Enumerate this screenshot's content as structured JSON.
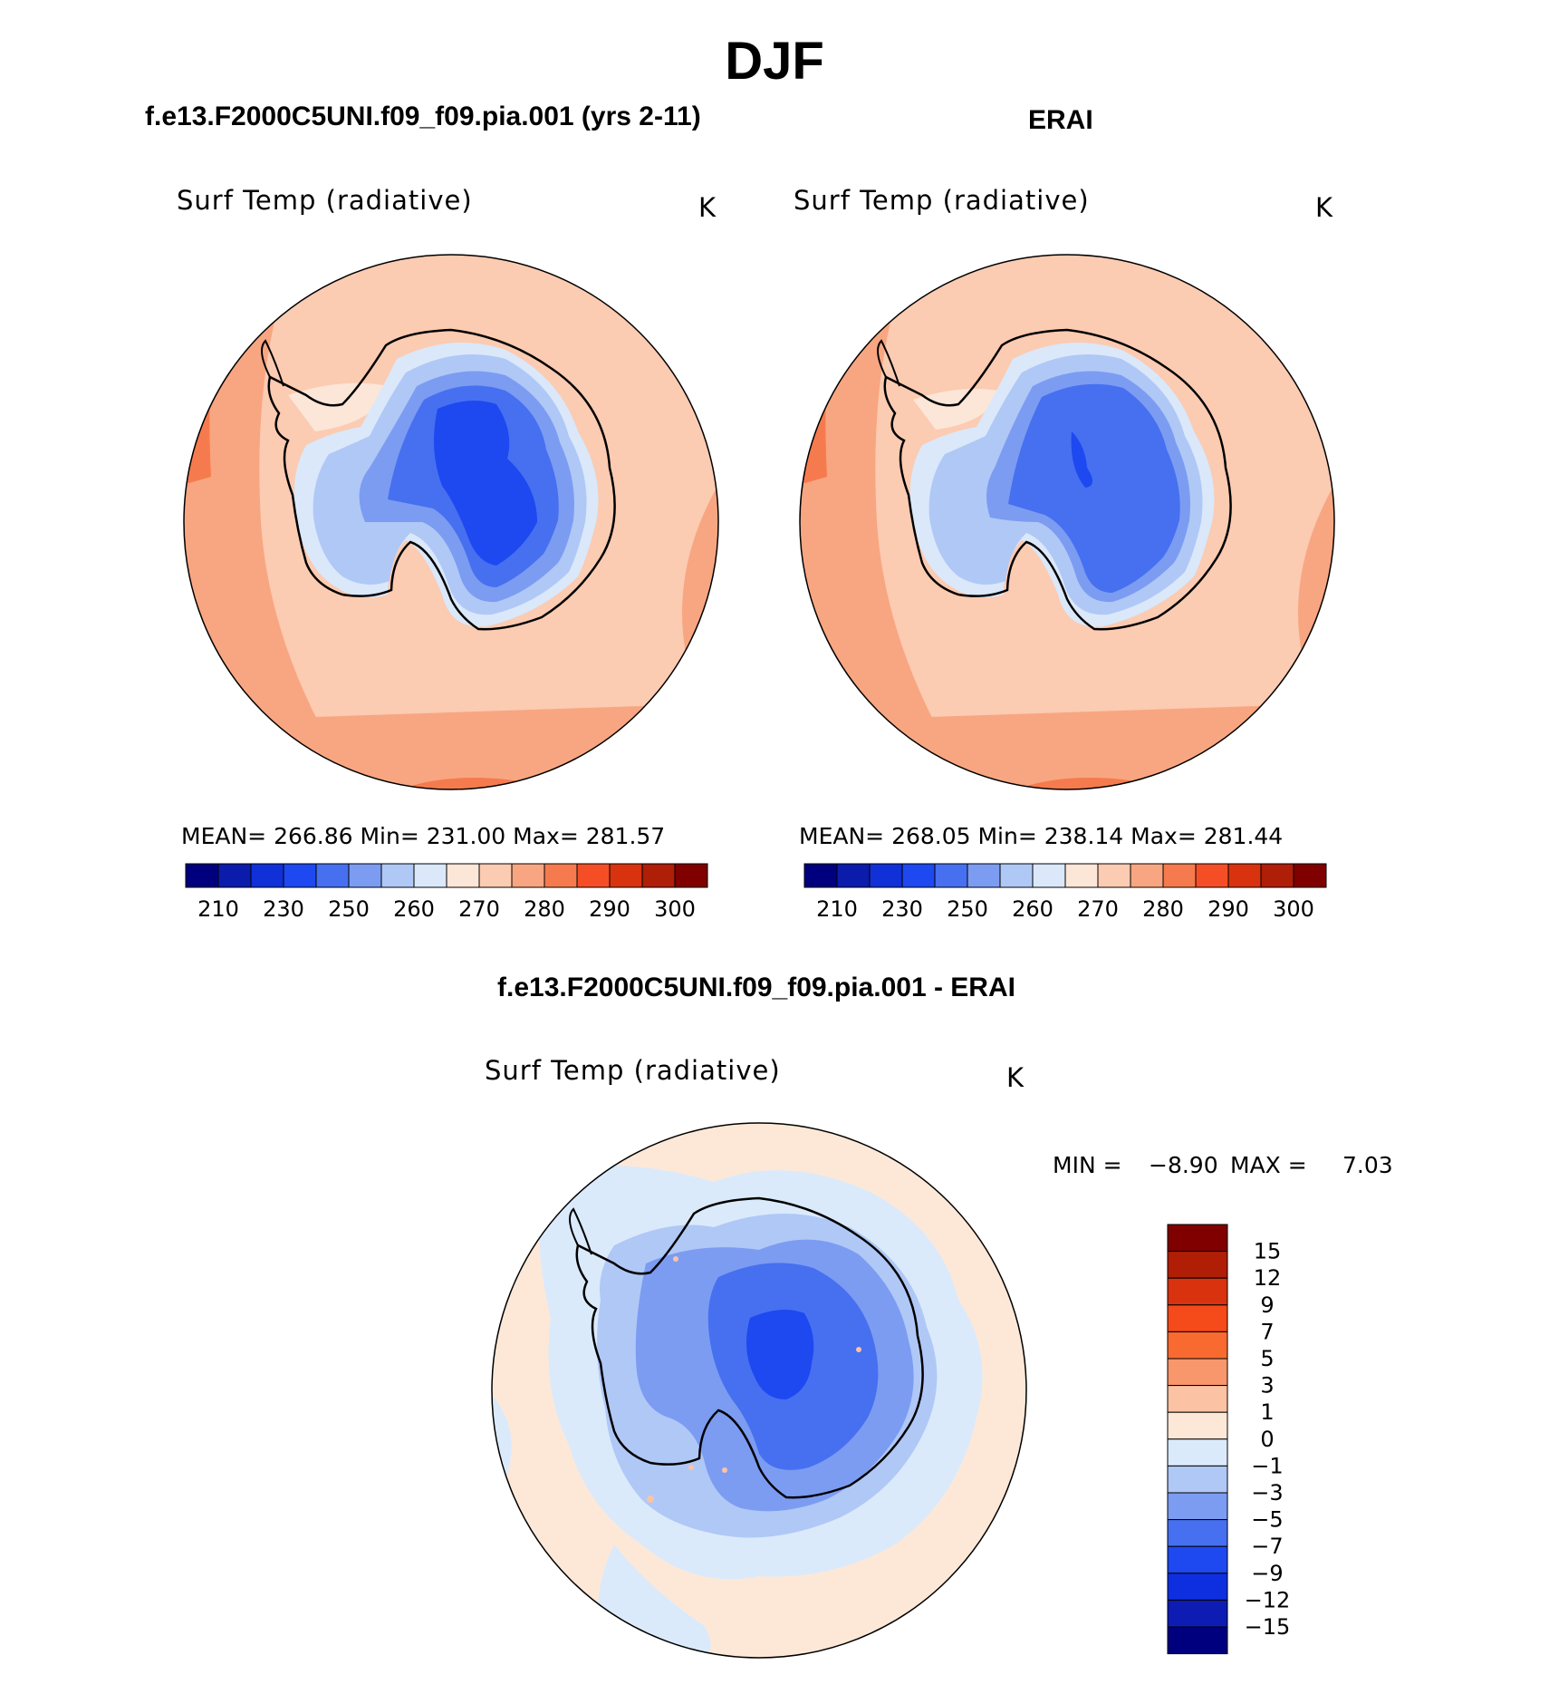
{
  "season_title": "DJF",
  "difference_title": "f.e13.F2000C5UNI.f09_f09.pia.001 - ERAI",
  "colors": {
    "abs_palette": [
      "#00007f",
      "#0b1bac",
      "#1030d8",
      "#1e48f0",
      "#4670f0",
      "#7c9cf2",
      "#b0c8f6",
      "#dae8fa",
      "#fce6d8",
      "#fbcbb2",
      "#f8a681",
      "#f57b4e",
      "#f54e26",
      "#d8330e",
      "#af1e06",
      "#800000"
    ],
    "diff_palette": [
      "#00007f",
      "#0d1cb2",
      "#0e2fe0",
      "#1e48f0",
      "#4670f0",
      "#7c9cf2",
      "#b0c8f6",
      "#daeafb",
      "#fde8d8",
      "#fbc3a4",
      "#f8966c",
      "#f96a30",
      "#f54a1a",
      "#d8330e",
      "#b01e06",
      "#800000"
    ],
    "coast": "#000000"
  },
  "panels": [
    {
      "title": "f.e13.F2000C5UNI.f09_f09.pia.001 (yrs 2-11)",
      "variable": "Surf Temp (radiative)",
      "units": "K",
      "stats": "MEAN=  266.86    Min=  231.00    Max=  281.57"
    },
    {
      "title": "ERAI",
      "variable": "Surf Temp (radiative)",
      "units": "K",
      "stats": "MEAN=  268.05    Min=  238.14    Max=  281.44"
    }
  ],
  "difference_panel": {
    "variable": "Surf Temp (radiative)",
    "units": "K",
    "min_label": "MIN =",
    "min_value": "−8.90",
    "max_label": "MAX =",
    "max_value": "7.03"
  },
  "chart_data": [
    {
      "type": "heatmap",
      "projection": "south polar stereographic",
      "title": "f.e13.F2000C5UNI.f09_f09.pia.001 (yrs 2-11)",
      "variable": "Surf Temp (radiative)",
      "units": "K",
      "mean": 266.86,
      "min": 231.0,
      "max": 281.57,
      "colorbar_ticks": [
        "210",
        "230",
        "250",
        "260",
        "270",
        "280",
        "290",
        "300"
      ],
      "colorbar_levels": 16
    },
    {
      "type": "heatmap",
      "projection": "south polar stereographic",
      "title": "ERAI",
      "variable": "Surf Temp (radiative)",
      "units": "K",
      "mean": 268.05,
      "min": 238.14,
      "max": 281.44,
      "colorbar_ticks": [
        "210",
        "230",
        "250",
        "260",
        "270",
        "280",
        "290",
        "300"
      ],
      "colorbar_levels": 16
    },
    {
      "type": "heatmap",
      "projection": "south polar stereographic",
      "title": "f.e13.F2000C5UNI.f09_f09.pia.001 - ERAI",
      "variable": "Surf Temp (radiative)",
      "units": "K",
      "min": -8.9,
      "max": 7.03,
      "colorbar_ticks": [
        "15",
        "12",
        "9",
        "7",
        "5",
        "3",
        "1",
        "0",
        "−1",
        "−3",
        "−5",
        "−7",
        "−9",
        "−12",
        "−15"
      ],
      "colorbar_levels": 16
    }
  ]
}
